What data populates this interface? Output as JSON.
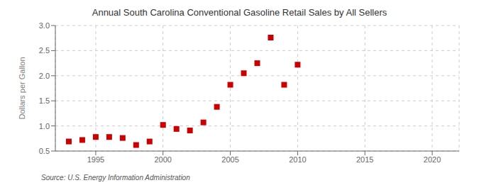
{
  "chart_data": {
    "type": "scatter",
    "title": "Annual South Carolina Conventional Gasoline Retail Sales by All Sellers",
    "ylabel": "Dollars per Gallon",
    "annotations": [
      "Source: U.S. Energy Information Administration"
    ],
    "x": [
      1993,
      1994,
      1995,
      1996,
      1997,
      1998,
      1999,
      2000,
      2001,
      2002,
      2003,
      2004,
      2005,
      2006,
      2007,
      2008,
      2009,
      2010
    ],
    "values": [
      0.69,
      0.72,
      0.78,
      0.78,
      0.76,
      0.62,
      0.69,
      1.02,
      0.94,
      0.91,
      1.07,
      1.38,
      1.82,
      2.05,
      2.25,
      2.76,
      1.82,
      2.22
    ],
    "color": "#cc0000",
    "marker": "square",
    "xlim": [
      1992,
      2022
    ],
    "ylim": [
      0.5,
      3.0
    ],
    "xticks": [
      1995,
      2000,
      2005,
      2010,
      2015,
      2020
    ],
    "yticks": [
      0.5,
      {
        "value": 1,
        "label": "1.0"
      },
      1.5,
      {
        "value": 2,
        "label": "2.0"
      },
      2.5,
      {
        "value": 3,
        "label": "3.0"
      }
    ],
    "grid": true
  }
}
